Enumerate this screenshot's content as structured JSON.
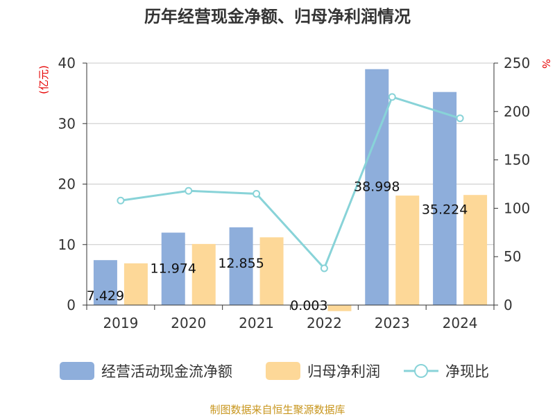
{
  "chart_data": {
    "type": "bar",
    "title": "历年经营现金净额、归母净利润情况",
    "categories": [
      "2019",
      "2020",
      "2021",
      "2022",
      "2023",
      "2024"
    ],
    "series": [
      {
        "name": "经营活动现金流净额",
        "type": "bar",
        "axis": "left",
        "color": "#8eaedb",
        "values": [
          7.429,
          11.974,
          12.855,
          0.003,
          38.998,
          35.224
        ],
        "labels": [
          "7.429",
          "11.974",
          "12.855",
          "0.003",
          "38.998",
          "35.224"
        ]
      },
      {
        "name": "归母净利润",
        "type": "bar",
        "axis": "left",
        "color": "#fdd898",
        "values": [
          6.9,
          10.1,
          11.2,
          -1.0,
          18.1,
          18.2
        ]
      },
      {
        "name": "净现比",
        "type": "line",
        "axis": "right",
        "color": "#88d3d8",
        "values": [
          108,
          118,
          115,
          38,
          215,
          193
        ]
      }
    ],
    "y_left": {
      "unit": "(亿元)",
      "ylim": [
        0,
        40
      ],
      "ticks": [
        "0",
        "10",
        "20",
        "30",
        "40"
      ]
    },
    "y_right": {
      "unit": "%",
      "ylim": [
        0,
        250
      ],
      "ticks": [
        "0",
        "50",
        "100",
        "150",
        "200",
        "250"
      ]
    },
    "grid": true,
    "legend_position": "bottom"
  },
  "source": "制图数据来自恒生聚源数据库"
}
